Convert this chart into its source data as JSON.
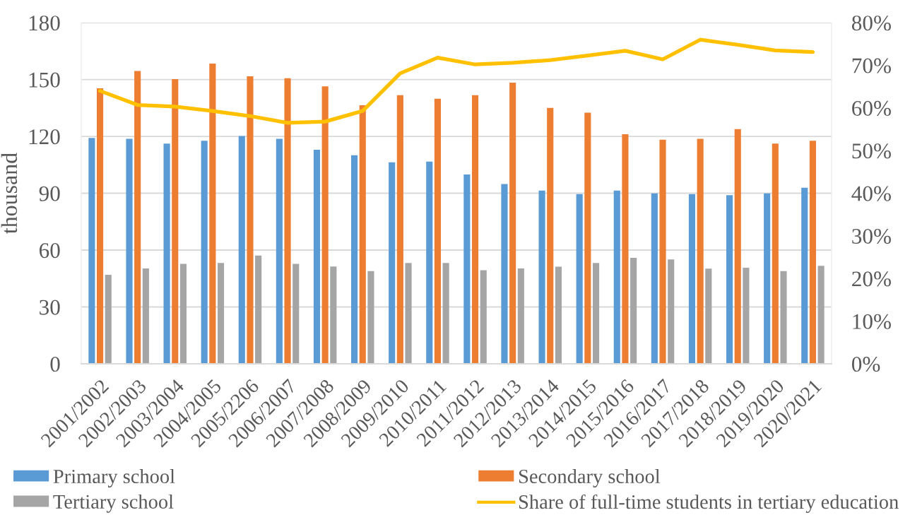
{
  "chart_data": {
    "type": "bar",
    "categories": [
      "2001/2002",
      "2002/2003",
      "2003/2004",
      "2004/2005",
      "2005/2206",
      "2006/2007",
      "2007/2008",
      "2008/2009",
      "2009/2010",
      "2010/2011",
      "2011/2012",
      "2012/2013",
      "2013/2014",
      "2014/2015",
      "2015/2016",
      "2016/2017",
      "2017/2018",
      "2018/2019",
      "2019/2020",
      "2020/2021"
    ],
    "series": [
      {
        "name": "Primary school",
        "color": "#5b9bd5",
        "values": [
          119.2,
          118.7,
          116.2,
          117.7,
          120.2,
          118.7,
          112.9,
          110.0,
          106.3,
          106.7,
          99.9,
          94.9,
          91.4,
          89.5,
          91.4,
          89.9,
          89.5,
          89.0,
          89.9,
          92.9
        ]
      },
      {
        "name": "Secondary school",
        "color": "#ed7d31",
        "values": [
          145.4,
          154.5,
          150.2,
          158.4,
          151.7,
          150.7,
          146.4,
          136.4,
          141.7,
          139.9,
          141.7,
          148.3,
          135.0,
          132.5,
          121.1,
          118.2,
          118.7,
          123.8,
          116.2,
          117.7
        ]
      },
      {
        "name": "Tertiary school",
        "color": "#a5a5a5",
        "values": [
          47.0,
          50.3,
          52.7,
          53.2,
          57.1,
          52.7,
          51.3,
          48.9,
          53.2,
          53.2,
          49.4,
          50.3,
          51.2,
          53.2,
          55.9,
          55.1,
          50.2,
          50.7,
          48.9,
          51.7
        ]
      },
      {
        "name": "Share of full-time students in tertiary education",
        "type": "line",
        "axis": "y2",
        "color": "#ffc000",
        "values": [
          64.0,
          60.7,
          60.3,
          59.3,
          58.1,
          56.5,
          56.8,
          59.3,
          68.1,
          71.8,
          70.2,
          70.6,
          71.2,
          72.3,
          73.4,
          71.4,
          76.0,
          74.8,
          73.5,
          73.1
        ]
      }
    ],
    "ylabel": "thousand",
    "ylim": [
      0,
      180
    ],
    "yticks": [
      0,
      30,
      60,
      90,
      120,
      150,
      180
    ],
    "y2lim": [
      0,
      80
    ],
    "y2ticks": [
      {
        "value": 0,
        "label": "0%"
      },
      {
        "value": 10,
        "label": "10%"
      },
      {
        "value": 20,
        "label": "20%"
      },
      {
        "value": 30,
        "label": "30%"
      },
      {
        "value": 40,
        "label": "40%"
      },
      {
        "value": 50,
        "label": "50%"
      },
      {
        "value": 60,
        "label": "60%"
      },
      {
        "value": 70,
        "label": "70%"
      },
      {
        "value": 80,
        "label": "80%"
      }
    ],
    "grid": "y",
    "legend": "bottom",
    "marker": "none",
    "line_style": "solid"
  }
}
